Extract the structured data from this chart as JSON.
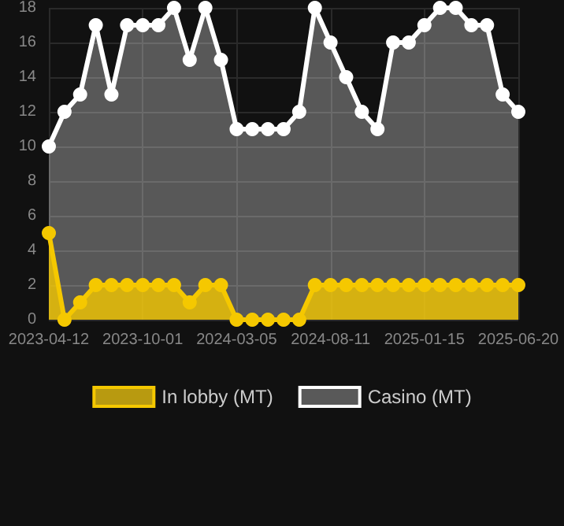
{
  "chart_data": {
    "type": "area",
    "categories": [
      "2023-04-12",
      null,
      null,
      null,
      null,
      null,
      "2023-10-01",
      null,
      null,
      null,
      null,
      null,
      "2024-03-05",
      null,
      null,
      null,
      null,
      null,
      "2024-08-11",
      null,
      null,
      null,
      null,
      null,
      "2025-01-15",
      null,
      null,
      null,
      null,
      null,
      "2025-06-20"
    ],
    "series": [
      {
        "name": "In lobby (MT)",
        "color": "#f5c800",
        "values": [
          5,
          0,
          1,
          2,
          2,
          2,
          2,
          2,
          2,
          1,
          2,
          2,
          0,
          0,
          0,
          0,
          0,
          2,
          2,
          2,
          2,
          2,
          2,
          2,
          2,
          2,
          2,
          2,
          2,
          2,
          2
        ]
      },
      {
        "name": "Casino (MT)",
        "color": "#ffffff",
        "values": [
          10,
          12,
          13,
          17,
          13,
          17,
          17,
          17,
          18,
          15,
          18,
          15,
          11,
          11,
          11,
          11,
          12,
          18,
          16,
          14,
          12,
          11,
          16,
          16,
          17,
          18,
          18,
          17,
          17,
          13,
          12
        ]
      }
    ],
    "ylim": [
      0,
      18
    ],
    "yticks": [
      0,
      2,
      4,
      6,
      8,
      10,
      12,
      14,
      16,
      18
    ],
    "grid": true,
    "legend": "bottom",
    "marker": "circle",
    "line_style": "solid"
  }
}
